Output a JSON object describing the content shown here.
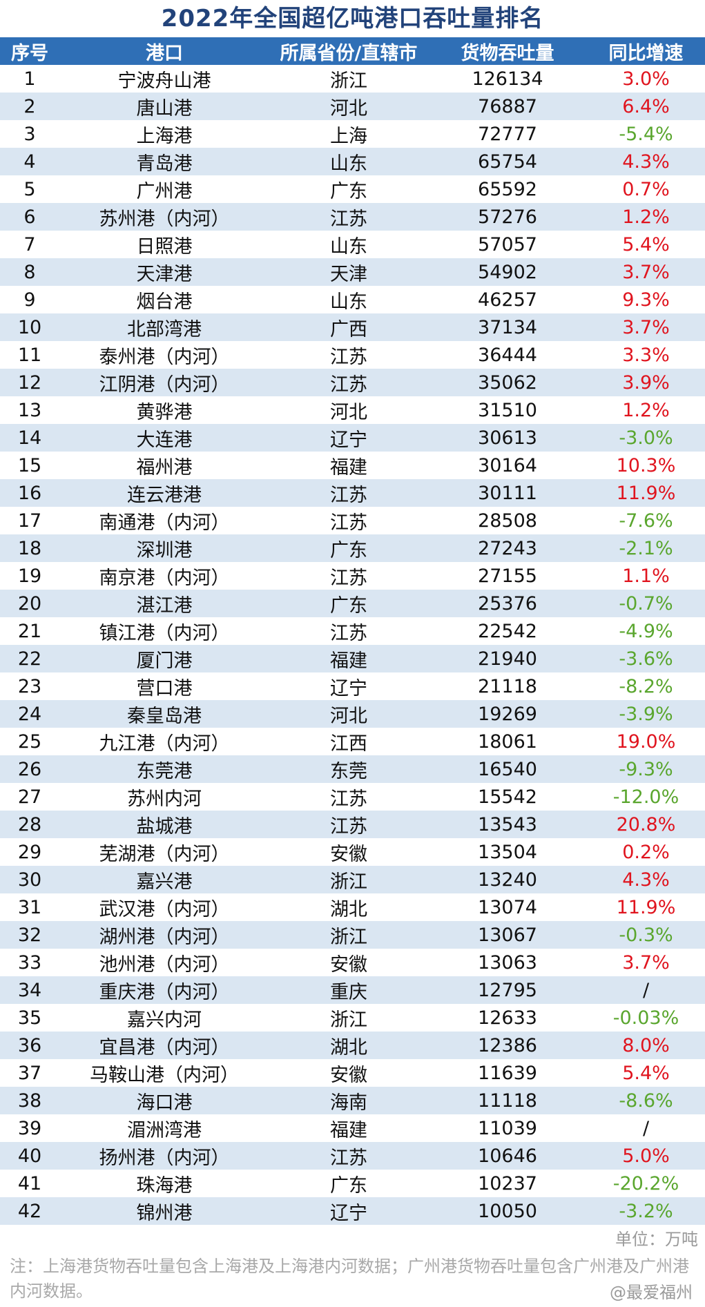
{
  "title": "2022年全国超亿吨港口吞吐量排名",
  "headers": [
    "序号",
    "港口",
    "所属省份/直辖市",
    "货物吞吐量",
    "同比增速"
  ],
  "colors": {
    "header_bg": "#2f6fb6",
    "row_alt": "#dae6f2",
    "positive": "#e0141e",
    "negative": "#5aa62e",
    "title": "#22437a"
  },
  "rows": [
    {
      "rank": "1",
      "port": "宁波舟山港",
      "province": "浙江",
      "throughput": "126134",
      "growth": "3.0%",
      "trend": "pos"
    },
    {
      "rank": "2",
      "port": "唐山港",
      "province": "河北",
      "throughput": "76887",
      "growth": "6.4%",
      "trend": "pos"
    },
    {
      "rank": "3",
      "port": "上海港",
      "province": "上海",
      "throughput": "72777",
      "growth": "-5.4%",
      "trend": "neg"
    },
    {
      "rank": "4",
      "port": "青岛港",
      "province": "山东",
      "throughput": "65754",
      "growth": "4.3%",
      "trend": "pos"
    },
    {
      "rank": "5",
      "port": "广州港",
      "province": "广东",
      "throughput": "65592",
      "growth": "0.7%",
      "trend": "pos"
    },
    {
      "rank": "6",
      "port": "苏州港（内河）",
      "province": "江苏",
      "throughput": "57276",
      "growth": "1.2%",
      "trend": "pos"
    },
    {
      "rank": "7",
      "port": "日照港",
      "province": "山东",
      "throughput": "57057",
      "growth": "5.4%",
      "trend": "pos"
    },
    {
      "rank": "8",
      "port": "天津港",
      "province": "天津",
      "throughput": "54902",
      "growth": "3.7%",
      "trend": "pos"
    },
    {
      "rank": "9",
      "port": "烟台港",
      "province": "山东",
      "throughput": "46257",
      "growth": "9.3%",
      "trend": "pos"
    },
    {
      "rank": "10",
      "port": "北部湾港",
      "province": "广西",
      "throughput": "37134",
      "growth": "3.7%",
      "trend": "pos"
    },
    {
      "rank": "11",
      "port": "泰州港（内河）",
      "province": "江苏",
      "throughput": "36444",
      "growth": "3.3%",
      "trend": "pos"
    },
    {
      "rank": "12",
      "port": "江阴港（内河）",
      "province": "江苏",
      "throughput": "35062",
      "growth": "3.9%",
      "trend": "pos"
    },
    {
      "rank": "13",
      "port": "黄骅港",
      "province": "河北",
      "throughput": "31510",
      "growth": "1.2%",
      "trend": "pos"
    },
    {
      "rank": "14",
      "port": "大连港",
      "province": "辽宁",
      "throughput": "30613",
      "growth": "-3.0%",
      "trend": "neg"
    },
    {
      "rank": "15",
      "port": "福州港",
      "province": "福建",
      "throughput": "30164",
      "growth": "10.3%",
      "trend": "pos"
    },
    {
      "rank": "16",
      "port": "连云港港",
      "province": "江苏",
      "throughput": "30111",
      "growth": "11.9%",
      "trend": "pos"
    },
    {
      "rank": "17",
      "port": "南通港（内河）",
      "province": "江苏",
      "throughput": "28508",
      "growth": "-7.6%",
      "trend": "neg"
    },
    {
      "rank": "18",
      "port": "深圳港",
      "province": "广东",
      "throughput": "27243",
      "growth": "-2.1%",
      "trend": "neg"
    },
    {
      "rank": "19",
      "port": "南京港（内河）",
      "province": "江苏",
      "throughput": "27155",
      "growth": "1.1%",
      "trend": "pos"
    },
    {
      "rank": "20",
      "port": "湛江港",
      "province": "广东",
      "throughput": "25376",
      "growth": "-0.7%",
      "trend": "neg"
    },
    {
      "rank": "21",
      "port": "镇江港（内河）",
      "province": "江苏",
      "throughput": "22542",
      "growth": "-4.9%",
      "trend": "neg"
    },
    {
      "rank": "22",
      "port": "厦门港",
      "province": "福建",
      "throughput": "21940",
      "growth": "-3.6%",
      "trend": "neg"
    },
    {
      "rank": "23",
      "port": "营口港",
      "province": "辽宁",
      "throughput": "21118",
      "growth": "-8.2%",
      "trend": "neg"
    },
    {
      "rank": "24",
      "port": "秦皇岛港",
      "province": "河北",
      "throughput": "19269",
      "growth": "-3.9%",
      "trend": "neg"
    },
    {
      "rank": "25",
      "port": "九江港（内河）",
      "province": "江西",
      "throughput": "18061",
      "growth": "19.0%",
      "trend": "pos"
    },
    {
      "rank": "26",
      "port": "东莞港",
      "province": "东莞",
      "throughput": "16540",
      "growth": "-9.3%",
      "trend": "neg"
    },
    {
      "rank": "27",
      "port": "苏州内河",
      "province": "江苏",
      "throughput": "15542",
      "growth": "-12.0%",
      "trend": "neg"
    },
    {
      "rank": "28",
      "port": "盐城港",
      "province": "江苏",
      "throughput": "13543",
      "growth": "20.8%",
      "trend": "pos"
    },
    {
      "rank": "29",
      "port": "芜湖港（内河）",
      "province": "安徽",
      "throughput": "13504",
      "growth": "0.2%",
      "trend": "pos"
    },
    {
      "rank": "30",
      "port": "嘉兴港",
      "province": "浙江",
      "throughput": "13240",
      "growth": "4.3%",
      "trend": "pos"
    },
    {
      "rank": "31",
      "port": "武汉港（内河）",
      "province": "湖北",
      "throughput": "13074",
      "growth": "11.9%",
      "trend": "pos"
    },
    {
      "rank": "32",
      "port": "湖州港（内河）",
      "province": "浙江",
      "throughput": "13067",
      "growth": "-0.3%",
      "trend": "neg"
    },
    {
      "rank": "33",
      "port": "池州港（内河）",
      "province": "安徽",
      "throughput": "13063",
      "growth": "3.7%",
      "trend": "pos"
    },
    {
      "rank": "34",
      "port": "重庆港（内河）",
      "province": "重庆",
      "throughput": "12795",
      "growth": "/",
      "trend": "na"
    },
    {
      "rank": "35",
      "port": "嘉兴内河",
      "province": "浙江",
      "throughput": "12633",
      "growth": "-0.03%",
      "trend": "neg"
    },
    {
      "rank": "36",
      "port": "宜昌港（内河）",
      "province": "湖北",
      "throughput": "12386",
      "growth": "8.0%",
      "trend": "pos"
    },
    {
      "rank": "37",
      "port": "马鞍山港（内河）",
      "province": "安徽",
      "throughput": "11639",
      "growth": "5.4%",
      "trend": "pos"
    },
    {
      "rank": "38",
      "port": "海口港",
      "province": "海南",
      "throughput": "11118",
      "growth": "-8.6%",
      "trend": "neg"
    },
    {
      "rank": "39",
      "port": "湄洲湾港",
      "province": "福建",
      "throughput": "11039",
      "growth": "/",
      "trend": "na"
    },
    {
      "rank": "40",
      "port": "扬州港（内河）",
      "province": "江苏",
      "throughput": "10646",
      "growth": "5.0%",
      "trend": "pos"
    },
    {
      "rank": "41",
      "port": "珠海港",
      "province": "广东",
      "throughput": "10237",
      "growth": "-20.2%",
      "trend": "neg"
    },
    {
      "rank": "42",
      "port": "锦州港",
      "province": "辽宁",
      "throughput": "10050",
      "growth": "-3.2%",
      "trend": "neg"
    }
  ],
  "unit": "单位：万吨",
  "note": "注：上海港货物吞吐量包含上海港及上海港内河数据；广州港货物吞吐量包含广州港及广州港内河数据。",
  "credit": "@最爱福州"
}
